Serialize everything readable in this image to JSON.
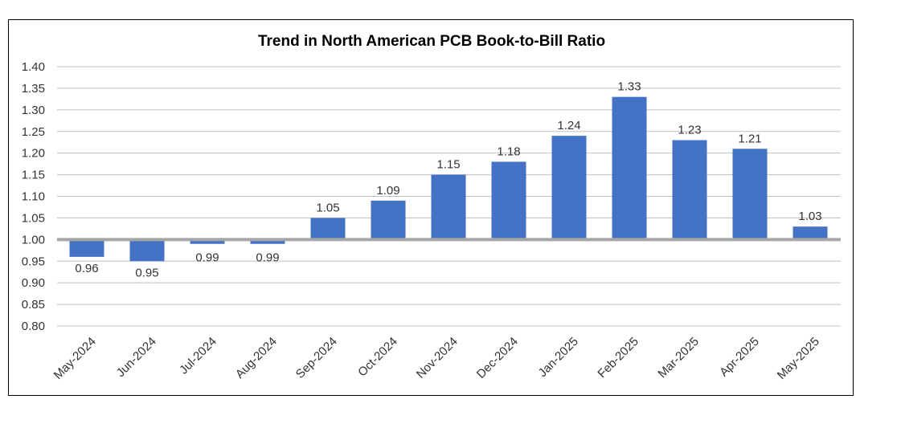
{
  "chart_data": {
    "type": "bar",
    "title": "Trend in North American PCB Book-to-Bill Ratio",
    "xlabel": "",
    "ylabel": "",
    "baseline": 1.0,
    "ylim": [
      0.8,
      1.4
    ],
    "yticks": [
      "0.80",
      "0.85",
      "0.90",
      "0.95",
      "1.00",
      "1.05",
      "1.10",
      "1.15",
      "1.20",
      "1.25",
      "1.30",
      "1.35",
      "1.40"
    ],
    "categories": [
      "May-2024",
      "Jun-2024",
      "Jul-2024",
      "Aug-2024",
      "Sep-2024",
      "Oct-2024",
      "Nov-2024",
      "Dec-2024",
      "Jan-2025",
      "Feb-2025",
      "Mar-2025",
      "Apr-2025",
      "May-2025"
    ],
    "values": [
      0.96,
      0.95,
      0.99,
      0.99,
      1.05,
      1.09,
      1.15,
      1.18,
      1.24,
      1.33,
      1.23,
      1.21,
      1.03
    ],
    "labels": [
      "0.96",
      "0.95",
      "0.99",
      "0.99",
      "1.05",
      "1.09",
      "1.15",
      "1.18",
      "1.24",
      "1.33",
      "1.23",
      "1.21",
      "1.03"
    ],
    "grid": true,
    "legend": "none",
    "colors": {
      "bar": "#4472c4",
      "baseline": "#a6a6a6",
      "grid": "#bfbfbf"
    }
  }
}
